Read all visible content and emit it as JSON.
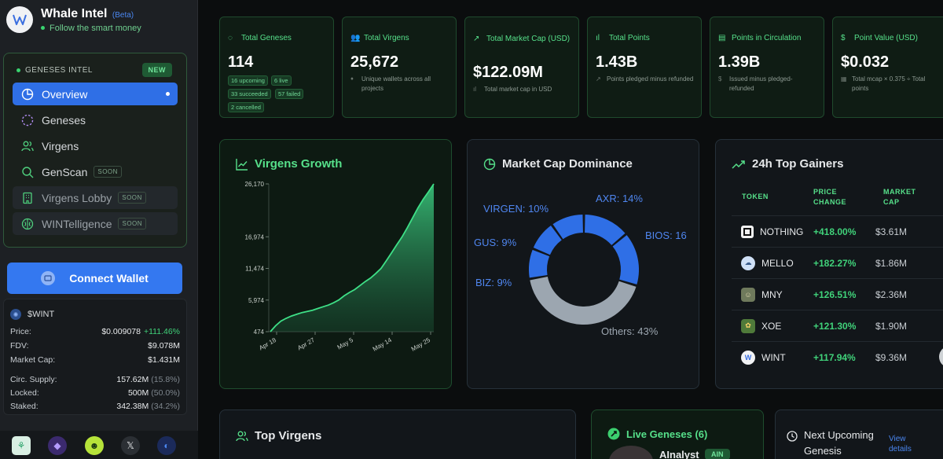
{
  "brand": {
    "title": "Whale Intel",
    "beta": "(Beta)",
    "tagline": "Follow the smart money"
  },
  "sidebar": {
    "section_label": "GENESES INTEL",
    "new_badge": "NEW",
    "items": [
      {
        "label": "Overview",
        "icon": "pie-chart-icon"
      },
      {
        "label": "Geneses",
        "icon": "dashed-circle-icon"
      },
      {
        "label": "Virgens",
        "icon": "users-icon"
      },
      {
        "label": "GenScan",
        "icon": "search-icon",
        "badge": "SOON"
      },
      {
        "label": "Virgens Lobby",
        "icon": "building-icon",
        "badge": "SOON"
      },
      {
        "label": "WINTelligence",
        "icon": "brain-icon",
        "badge": "SOON"
      }
    ],
    "connect_wallet": "Connect Wallet"
  },
  "token": {
    "symbol": "$WINT",
    "rows": [
      {
        "label": "Price:",
        "value": "$0.009078",
        "change": "+111.46%"
      },
      {
        "label": "FDV:",
        "value": "$9.078M"
      },
      {
        "label": "Market Cap:",
        "value": "$1.431M"
      },
      {
        "label": "Circ. Supply:",
        "value": "157.62M",
        "pct": "(15.8%)"
      },
      {
        "label": "Locked:",
        "value": "500M",
        "pct": "(50.0%)"
      },
      {
        "label": "Staked:",
        "value": "342.38M",
        "pct": "(34.2%)"
      }
    ]
  },
  "stats": [
    {
      "label": "Total Geneses",
      "value": "114",
      "chips": [
        "16 upcoming",
        "6 live",
        "33 succeeded",
        "57 failed",
        "2 cancelled"
      ]
    },
    {
      "label": "Total Virgens",
      "value": "25,672",
      "sub": "Unique wallets across all projects"
    },
    {
      "label": "Total Market Cap (USD)",
      "value": "$122.09M",
      "sub": "Total market cap in USD"
    },
    {
      "label": "Total Points",
      "value": "1.43B",
      "sub": "Points pledged minus refunded"
    },
    {
      "label": "Points in Circulation",
      "value": "1.39B",
      "sub": "Issued minus pledged-refunded"
    },
    {
      "label": "Point Value (USD)",
      "value": "$0.032",
      "sub": "Total mcap × 0.375 ÷ Total points"
    }
  ],
  "growth": {
    "title": "Virgens Growth",
    "chart_data": {
      "type": "area",
      "title": "Virgens Growth",
      "y_ticks": [
        "474",
        "5,974",
        "11,474",
        "16,974",
        "26,170"
      ],
      "x_ticks": [
        "Apr 18",
        "Apr 27",
        "May 5",
        "May 14",
        "May 25"
      ],
      "ylim": [
        474,
        26170
      ],
      "values": [
        474,
        1500,
        2300,
        2800,
        3200,
        3500,
        3800,
        4000,
        4200,
        4500,
        4800,
        5100,
        5500,
        6000,
        6700,
        7300,
        7800,
        8500,
        9200,
        9800,
        10600,
        11474,
        12800,
        14200,
        15600,
        16974,
        18600,
        20300,
        22000,
        23500,
        24800,
        26170
      ]
    }
  },
  "dominance": {
    "title": "Market Cap Dominance",
    "chart_data": {
      "type": "pie",
      "labels": [
        "AXR: 14%",
        "BIOS: 16",
        "Others: 43%",
        "BIZ: 9%",
        "GUS: 9%",
        "VIRGEN: 10%"
      ],
      "values": [
        14,
        16,
        43,
        9,
        9,
        10
      ]
    }
  },
  "gainers": {
    "title": "24h Top Gainers",
    "headers": {
      "token": "TOKEN",
      "change": "PRICE CHANGE",
      "cap": "MARKET CAP"
    },
    "rows": [
      {
        "token": "NOTHING",
        "change": "+418.00%",
        "cap": "$3.61M"
      },
      {
        "token": "MELLO",
        "change": "+182.27%",
        "cap": "$1.86M"
      },
      {
        "token": "MNY",
        "change": "+126.51%",
        "cap": "$2.36M"
      },
      {
        "token": "XOE",
        "change": "+121.30%",
        "cap": "$1.90M"
      },
      {
        "token": "WINT",
        "change": "+117.94%",
        "cap": "$9.36M"
      }
    ]
  },
  "bottom": {
    "top_virgens": "Top Virgens",
    "live_geneses": "Live Geneses (6)",
    "live_first": "AInalyst",
    "live_first_tag": "AIN",
    "next_upcoming": "Next Upcoming Genesis",
    "view_details": "View details"
  }
}
